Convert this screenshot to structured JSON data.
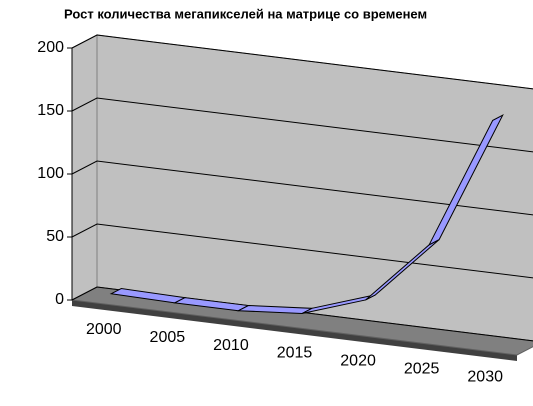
{
  "chart_data": {
    "type": "line3d",
    "title": "Рост количества мегапикселей на матрице со временем",
    "categories": [
      "2000",
      "2005",
      "2010",
      "2015",
      "2020",
      "2025",
      "2030"
    ],
    "values": [
      5,
      4,
      4,
      8,
      25,
      75,
      180
    ],
    "color": "#9999ff",
    "ylim": [
      0,
      200
    ],
    "yticks": [
      0,
      50,
      100,
      150,
      200
    ],
    "grid": true
  }
}
